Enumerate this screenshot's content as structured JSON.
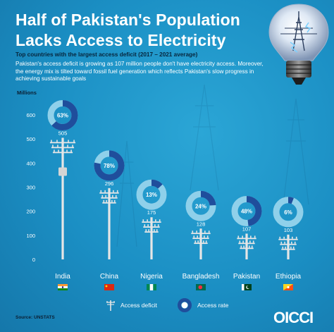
{
  "header": {
    "title": "Half of Pakistan's Population Lacks Access to Electricity",
    "subtitle": "Top countries with the largest access deficit (2017 – 2021 average)",
    "description": "Pakistan's access deficit is growing as 107 million people don't have electricity access. Moreover, the energy mix is tilted toward fossil fuel generation which reflects Pakistan's slow progress in achieving sustainable goals"
  },
  "legend": {
    "deficit_label": "Access deficit",
    "rate_label": "Access rate"
  },
  "footer": {
    "source": "Source: UNSTATS",
    "logo": "OICCI"
  },
  "colors": {
    "background": "#1b8fc4",
    "ring_track": "#8fd0ea",
    "ring_fill": "#1f4e9c",
    "ring_center": "#ffffff",
    "pole": "#e6e6e6",
    "axis_text": "#ffffff"
  },
  "chart_data": {
    "type": "bar",
    "ylabel": "Millions",
    "ylim": [
      0,
      600
    ],
    "yticks": [
      "0",
      "100",
      "200",
      "300",
      "400",
      "500",
      "600"
    ],
    "grid": false,
    "categories": [
      "India",
      "China",
      "Nigeria",
      "Bangladesh",
      "Pakistan",
      "Ethiopia"
    ],
    "series": [
      {
        "name": "Access deficit",
        "values": [
          505,
          296,
          175,
          128,
          107,
          103
        ],
        "labels": [
          "505",
          "296",
          "175",
          "128",
          "107",
          "103"
        ]
      },
      {
        "name": "Access rate",
        "values": [
          63,
          78,
          13,
          24,
          48,
          6
        ],
        "labels": [
          "63%",
          "78%",
          "13%",
          "24%",
          "48%",
          "6%"
        ]
      }
    ],
    "flags": [
      "india-flag",
      "china-flag",
      "nigeria-flag",
      "bangladesh-flag",
      "pakistan-flag",
      "bhutan-flag"
    ]
  }
}
